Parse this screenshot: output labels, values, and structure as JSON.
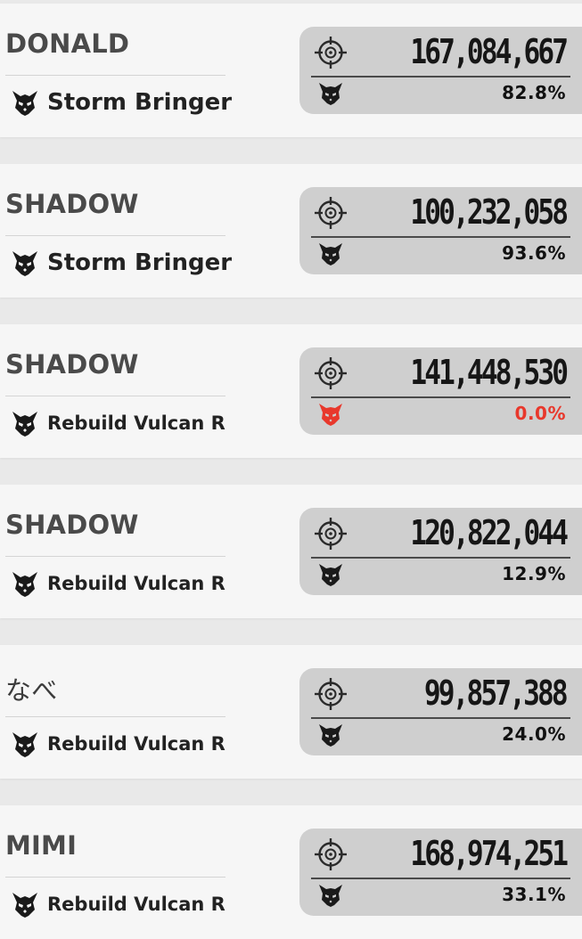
{
  "colors": {
    "card_background": "#f6f6f6",
    "stat_panel": "#cfcfcf",
    "text_dark": "#161616",
    "name_text": "#4a4a4a",
    "icon_dark": "#1a1a1a",
    "alert_red": "#e8382c"
  },
  "entries": [
    {
      "player_name": "DONALD",
      "weapon_icon": "demon-emblem-icon",
      "weapon_name": "Storm Bringer",
      "damage": "167,084,667",
      "damage_icon": "crosshair-icon",
      "percent_icon": "skull-icon",
      "percent": "82.8%"
    },
    {
      "player_name": "SHADOW",
      "weapon_icon": "demon-emblem-icon",
      "weapon_name": "Storm Bringer",
      "damage": "100,232,058",
      "damage_icon": "crosshair-icon",
      "percent_icon": "skull-icon",
      "percent": "93.6%"
    },
    {
      "player_name": "SHADOW",
      "weapon_icon": "demon-emblem-icon",
      "weapon_name": "Rebuild Vulcan R",
      "damage": "141,448,530",
      "damage_icon": "crosshair-icon",
      "percent_icon": "skull-icon",
      "percent": "0.0%",
      "percent_color": "#e8382c"
    },
    {
      "player_name": "SHADOW",
      "weapon_icon": "demon-emblem-icon",
      "weapon_name": "Rebuild Vulcan R",
      "damage": "120,822,044",
      "damage_icon": "crosshair-icon",
      "percent_icon": "skull-icon",
      "percent": "12.9%"
    },
    {
      "player_name": "なべ",
      "weapon_icon": "demon-emblem-icon",
      "weapon_name": "Rebuild Vulcan R",
      "damage": "99,857,388",
      "damage_icon": "crosshair-icon",
      "percent_icon": "skull-icon",
      "percent": "24.0%"
    },
    {
      "player_name": "MIMI",
      "weapon_icon": "demon-emblem-icon",
      "weapon_name": "Rebuild Vulcan R",
      "damage": "168,974,251",
      "damage_icon": "crosshair-icon",
      "percent_icon": "skull-icon",
      "percent": "33.1%"
    }
  ]
}
